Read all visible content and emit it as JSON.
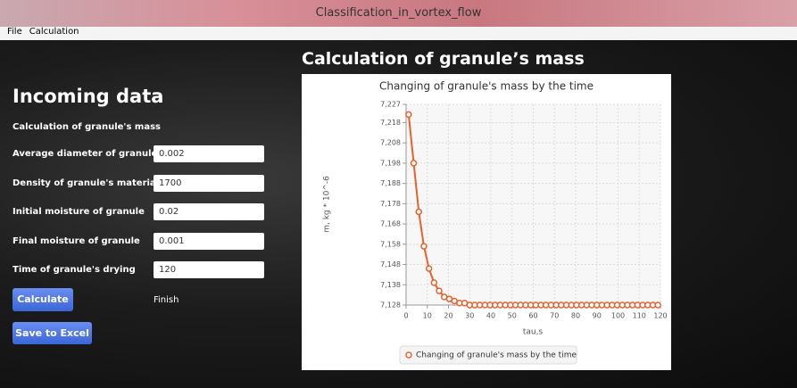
{
  "window": {
    "title": "Classification_in_vortex_flow"
  },
  "menu": [
    "File",
    "Calculation"
  ],
  "form": {
    "title": "Incoming data",
    "subtitle": "Calculation of granule's mass",
    "fields": [
      {
        "label": "Average diameter of granule",
        "value": "0.002"
      },
      {
        "label": "Density of granule's material",
        "value": "1700"
      },
      {
        "label": "Initial moisture of granule",
        "value": "0.02"
      },
      {
        "label": "Final moisture of granule",
        "value": "0.001"
      },
      {
        "label": "Time of granule's drying",
        "value": "120"
      }
    ],
    "calculate": "Calculate",
    "status": "Finish",
    "save": "Save to Excel"
  },
  "section_title": "Calculation of granule’s mass",
  "chart_data": {
    "type": "line",
    "title": "Changing of granule's mass by the time",
    "x_label": "tau,s",
    "y_label": "m, kg * 10^-6",
    "x": [
      1.2,
      3.6,
      6.0,
      8.4,
      10.8,
      13.2,
      15.6,
      18.0,
      20.4,
      22.8,
      25.2,
      27.6,
      30.0,
      32.4,
      34.8,
      37.2,
      39.6,
      42.0,
      44.4,
      46.8,
      49.2,
      51.6,
      54.0,
      56.4,
      58.8,
      61.2,
      63.6,
      66.0,
      68.4,
      70.8,
      73.2,
      75.6,
      78.0,
      80.4,
      82.8,
      85.2,
      87.6,
      90.0,
      92.4,
      94.8,
      97.2,
      99.6,
      102.0,
      104.4,
      106.8,
      109.2,
      111.6,
      114.0,
      116.4,
      118.8
    ],
    "series": [
      {
        "name": "Changing of granule's mass by the time",
        "color": "#e8612c",
        "values": [
          7.222,
          7.198,
          7.174,
          7.157,
          7.146,
          7.139,
          7.135,
          7.132,
          7.131,
          7.13,
          7.129,
          7.129,
          7.128,
          7.128,
          7.128,
          7.128,
          7.128,
          7.128,
          7.128,
          7.128,
          7.128,
          7.128,
          7.128,
          7.128,
          7.128,
          7.128,
          7.128,
          7.128,
          7.128,
          7.128,
          7.128,
          7.128,
          7.128,
          7.128,
          7.128,
          7.128,
          7.128,
          7.128,
          7.128,
          7.128,
          7.128,
          7.128,
          7.128,
          7.128,
          7.128,
          7.128,
          7.128,
          7.128,
          7.128,
          7.128
        ]
      }
    ],
    "xlim": [
      0,
      120
    ],
    "xticks": [
      0,
      10,
      20,
      30,
      40,
      50,
      60,
      70,
      80,
      90,
      100,
      110,
      120
    ],
    "ylim": [
      7.128,
      7.227
    ],
    "yticks": [
      {
        "value": 7.128,
        "label": "7,128"
      },
      {
        "value": 7.138,
        "label": "7,138"
      },
      {
        "value": 7.148,
        "label": "7,148"
      },
      {
        "value": 7.158,
        "label": "7,158"
      },
      {
        "value": 7.168,
        "label": "7,168"
      },
      {
        "value": 7.178,
        "label": "7,178"
      },
      {
        "value": 7.188,
        "label": "7,188"
      },
      {
        "value": 7.198,
        "label": "7,198"
      },
      {
        "value": 7.208,
        "label": "7,208"
      },
      {
        "value": 7.218,
        "label": "7,218"
      },
      {
        "value": 7.227,
        "label": "7,227"
      }
    ],
    "grid": true,
    "legend": "bottom"
  }
}
